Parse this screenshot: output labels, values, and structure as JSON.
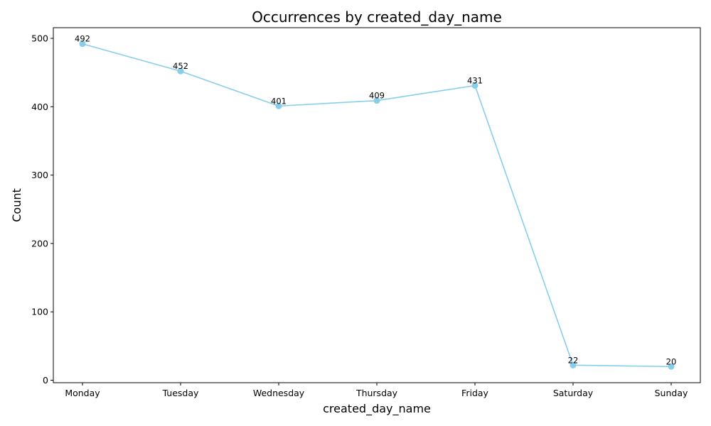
{
  "chart_data": {
    "type": "line",
    "title": "Occurrences by created_day_name",
    "xlabel": "created_day_name",
    "ylabel": "Count",
    "categories": [
      "Monday",
      "Tuesday",
      "Wednesday",
      "Thursday",
      "Friday",
      "Saturday",
      "Sunday"
    ],
    "values": [
      492,
      452,
      401,
      409,
      431,
      22,
      20
    ],
    "data_labels": [
      "492",
      "452",
      "401",
      "409",
      "431",
      "22",
      "20"
    ],
    "yticks": [
      0,
      100,
      200,
      300,
      400,
      500
    ],
    "ytick_labels": [
      "0",
      "100",
      "200",
      "300",
      "400",
      "500"
    ],
    "ylim": [
      -3.6,
      515.6
    ],
    "grid": false,
    "line_color": "#87CEEB",
    "marker_color": "#87CEEB"
  }
}
